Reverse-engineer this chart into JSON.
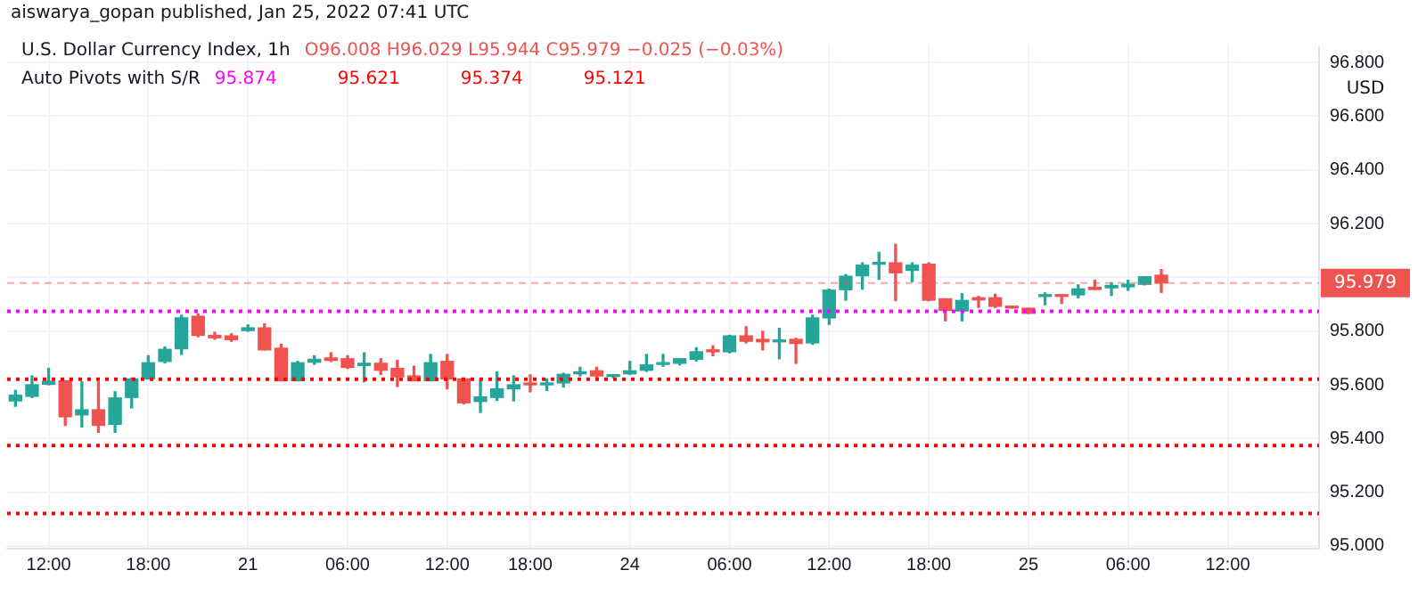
{
  "chart_data": {
    "type": "candlestick",
    "title": "U.S. Dollar Currency Index, 1h",
    "ylabel": "USD",
    "annotations": [
      "aiswarya_gopan published, Jan 25, 2022 07:41 UTC",
      "O96.008 H96.029 L95.944 C95.979 −0.025 (−0.03%)",
      "Auto Pivots with S/R"
    ],
    "categories": [
      null,
      null,
      "12:00",
      null,
      null,
      null,
      null,
      null,
      "18:00",
      null,
      null,
      null,
      null,
      null,
      "21",
      null,
      null,
      null,
      null,
      null,
      "06:00",
      null,
      null,
      null,
      null,
      null,
      "12:00",
      null,
      null,
      null,
      null,
      "18:00",
      null,
      null,
      null,
      null,
      null,
      "24",
      null,
      null,
      null,
      null,
      null,
      "06:00",
      null,
      null,
      null,
      null,
      null,
      "12:00",
      null,
      null,
      null,
      null,
      null,
      "18:00",
      null,
      null,
      null,
      null,
      null,
      "25",
      null,
      null,
      null,
      null,
      null,
      "06:00",
      null,
      null,
      null,
      null,
      null,
      "12:00",
      null,
      null,
      null,
      null,
      null
    ],
    "ohlc": [
      [
        95.54,
        95.579,
        95.52,
        95.561
      ],
      [
        95.557,
        95.633,
        95.553,
        95.6
      ],
      [
        95.602,
        95.661,
        95.6,
        95.613
      ],
      [
        95.615,
        95.615,
        95.449,
        95.481
      ],
      [
        95.488,
        95.611,
        95.443,
        95.507
      ],
      [
        95.507,
        95.611,
        95.423,
        95.449
      ],
      [
        95.453,
        95.574,
        95.423,
        95.551
      ],
      [
        95.553,
        95.625,
        95.514,
        95.622
      ],
      [
        95.622,
        95.708,
        95.622,
        95.682
      ],
      [
        95.687,
        95.741,
        95.682,
        95.732
      ],
      [
        95.734,
        95.859,
        95.713,
        95.849
      ],
      [
        95.855,
        95.864,
        95.779,
        95.784
      ],
      [
        95.784,
        95.795,
        95.77,
        95.775
      ],
      [
        95.782,
        95.79,
        95.762,
        95.768
      ],
      [
        95.802,
        95.823,
        95.799,
        95.812
      ],
      [
        95.812,
        95.827,
        95.73,
        95.73
      ],
      [
        95.736,
        95.751,
        95.615,
        95.615
      ],
      [
        95.615,
        95.687,
        95.615,
        95.682
      ],
      [
        95.684,
        95.708,
        95.676,
        95.695
      ],
      [
        95.7,
        95.719,
        95.687,
        95.691
      ],
      [
        95.697,
        95.708,
        95.661,
        95.665
      ],
      [
        95.672,
        95.719,
        95.611,
        95.68
      ],
      [
        95.68,
        95.697,
        95.639,
        95.654
      ],
      [
        95.661,
        95.691,
        95.594,
        95.63
      ],
      [
        95.633,
        95.669,
        95.615,
        95.615
      ],
      [
        95.615,
        95.713,
        95.615,
        95.682
      ],
      [
        95.687,
        95.713,
        95.585,
        95.622
      ],
      [
        95.622,
        95.622,
        95.529,
        95.533
      ],
      [
        95.538,
        95.622,
        95.497,
        95.555
      ],
      [
        95.553,
        95.648,
        95.542,
        95.585
      ],
      [
        95.585,
        95.633,
        95.54,
        95.6
      ],
      [
        95.604,
        95.637,
        95.574,
        95.6
      ],
      [
        95.6,
        95.622,
        95.579,
        95.604
      ],
      [
        95.607,
        95.643,
        95.592,
        95.639
      ],
      [
        95.641,
        95.665,
        95.633,
        95.648
      ],
      [
        95.652,
        95.665,
        95.626,
        95.633
      ],
      [
        95.631,
        95.635,
        95.626,
        95.635
      ],
      [
        95.641,
        95.687,
        95.639,
        95.652
      ],
      [
        95.654,
        95.713,
        95.65,
        95.674
      ],
      [
        95.676,
        95.713,
        95.669,
        95.682
      ],
      [
        95.68,
        95.697,
        95.674,
        95.697
      ],
      [
        95.695,
        95.738,
        95.689,
        95.723
      ],
      [
        95.73,
        95.745,
        95.708,
        95.723
      ],
      [
        95.723,
        95.784,
        95.719,
        95.782
      ],
      [
        95.782,
        95.816,
        95.756,
        95.762
      ],
      [
        95.769,
        95.799,
        95.73,
        95.76
      ],
      [
        95.76,
        95.81,
        95.697,
        95.764
      ],
      [
        95.769,
        95.773,
        95.68,
        95.754
      ],
      [
        95.756,
        95.859,
        95.751,
        95.849
      ],
      [
        95.849,
        95.956,
        95.825,
        95.952
      ],
      [
        95.954,
        96.01,
        95.915,
        96.004
      ],
      [
        96.006,
        96.054,
        95.956,
        96.045
      ],
      [
        96.049,
        96.093,
        95.993,
        96.054
      ],
      [
        96.054,
        96.123,
        95.913,
        96.017
      ],
      [
        96.026,
        96.054,
        95.984,
        96.045
      ],
      [
        96.049,
        96.054,
        95.913,
        95.915
      ],
      [
        95.92,
        95.92,
        95.838,
        95.877
      ],
      [
        95.875,
        95.939,
        95.838,
        95.914
      ],
      [
        95.924,
        95.929,
        95.888,
        95.916
      ],
      [
        95.924,
        95.937,
        95.888,
        95.892
      ],
      [
        95.892,
        95.892,
        95.886,
        95.886
      ],
      [
        95.885,
        95.885,
        95.866,
        95.866
      ],
      [
        95.929,
        95.942,
        95.898,
        95.933
      ],
      [
        95.933,
        95.933,
        95.903,
        95.929
      ],
      [
        95.935,
        95.972,
        95.924,
        95.957
      ],
      [
        95.963,
        95.989,
        95.955,
        95.955
      ],
      [
        95.961,
        95.98,
        95.933,
        95.97
      ],
      [
        95.965,
        95.989,
        95.952,
        95.974
      ],
      [
        95.974,
        96.002,
        95.972,
        96.002
      ],
      [
        96.008,
        96.029,
        95.944,
        95.979
      ],
      null,
      null,
      null,
      null,
      null,
      null,
      null,
      null,
      null
    ],
    "ylim": [
      94.99,
      96.86
    ],
    "yticks": [
      {
        "value": 95,
        "label": "95.000"
      },
      {
        "value": 95.2,
        "label": "95.200"
      },
      {
        "value": 95.4,
        "label": "95.400"
      },
      {
        "value": 95.6,
        "label": "95.600"
      },
      {
        "value": 95.8,
        "label": "95.800"
      },
      {
        "value": 96,
        "label": null
      },
      {
        "value": 96.2,
        "label": "96.200"
      },
      {
        "value": 96.4,
        "label": "96.400"
      },
      {
        "value": 96.6,
        "label": "96.600"
      },
      {
        "value": 96.8,
        "label": "96.800"
      }
    ],
    "ref_lines": [
      {
        "axis": "y",
        "value": 95.874,
        "label": "95.874",
        "color": "#ff00ff",
        "line_style": "dotted"
      },
      {
        "axis": "y",
        "value": 95.621,
        "label": "95.621",
        "color": "#ff0000",
        "line_style": "dotted"
      },
      {
        "axis": "y",
        "value": 95.374,
        "label": "95.374",
        "color": "#ff0000",
        "line_style": "dotted"
      },
      {
        "axis": "y",
        "value": 95.121,
        "label": "95.121",
        "color": "#ff0000",
        "line_style": "dotted"
      },
      {
        "axis": "y",
        "value": 95.979,
        "label": "95.979",
        "color": "#ef5350",
        "line_style": "dashed"
      }
    ],
    "grid": true,
    "legend": false
  }
}
